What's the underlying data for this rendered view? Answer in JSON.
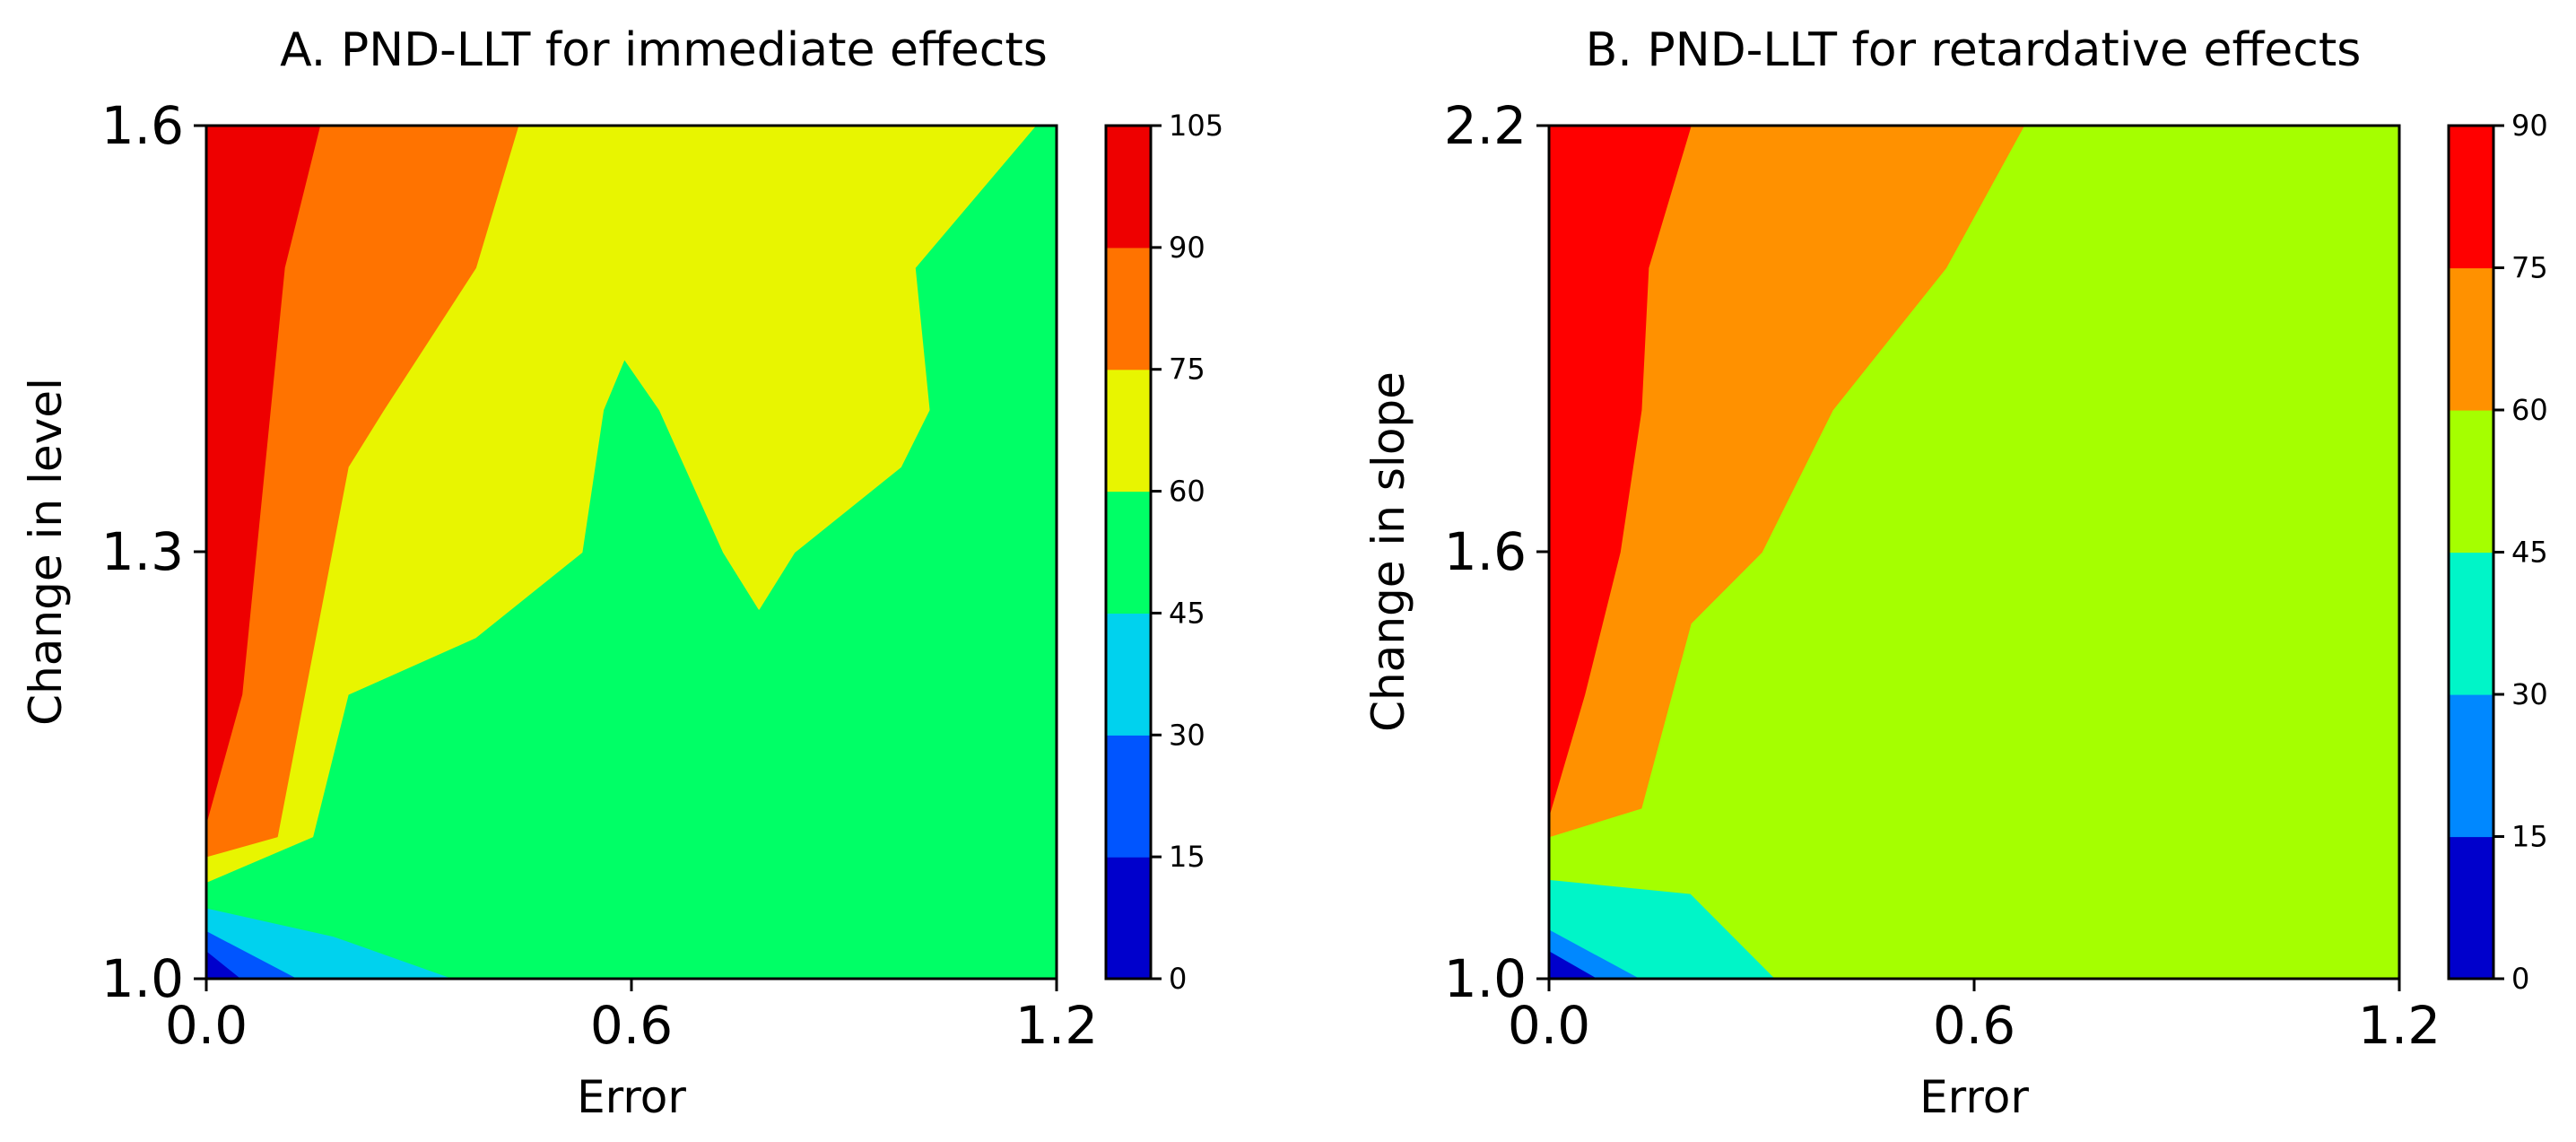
{
  "chart_data": [
    {
      "type": "contour",
      "title": "A. PND-LLT for immediate effects",
      "xlabel": "Error",
      "ylabel": "Change in level",
      "xlim": [
        0.0,
        1.2
      ],
      "ylim": [
        1.0,
        1.6
      ],
      "xticks": [
        "0.0",
        "0.6",
        "1.2"
      ],
      "yticks": [
        "1.0",
        "1.3",
        "1.6"
      ],
      "colorbar": {
        "levels": [
          0,
          15,
          30,
          45,
          60,
          75,
          90,
          105
        ],
        "labels": [
          "0",
          "15",
          "30",
          "45",
          "60",
          "75",
          "90",
          "105"
        ],
        "colors": [
          "#0000cc",
          "#0055ff",
          "#00d2ee",
          "#00ff66",
          "#e8f500",
          "#ff7300",
          "#ee0000"
        ]
      },
      "regions": [
        {
          "range": "0-15",
          "points": [
            [
              0.0,
              1.0
            ],
            [
              0.0,
              1.02
            ],
            [
              0.05,
              1.0
            ]
          ]
        },
        {
          "range": "15-30",
          "points": [
            [
              0.0,
              1.02
            ],
            [
              0.0,
              1.034
            ],
            [
              0.13,
              1.0
            ],
            [
              0.05,
              1.0
            ]
          ]
        },
        {
          "range": "30-45",
          "points": [
            [
              0.0,
              1.034
            ],
            [
              0.0,
              1.05
            ],
            [
              0.18,
              1.03
            ],
            [
              0.35,
              1.0
            ],
            [
              0.13,
              1.0
            ]
          ]
        },
        {
          "range": "45-60",
          "points": [
            [
              0.0,
              1.05
            ],
            [
              0.0,
              1.068
            ],
            [
              0.15,
              1.1
            ],
            [
              0.2,
              1.2
            ],
            [
              0.38,
              1.24
            ],
            [
              0.53,
              1.3
            ],
            [
              0.56,
              1.4
            ],
            [
              0.59,
              1.436
            ],
            [
              0.64,
              1.4
            ],
            [
              0.73,
              1.3
            ],
            [
              0.78,
              1.26
            ],
            [
              0.83,
              1.3
            ],
            [
              0.98,
              1.36
            ],
            [
              1.02,
              1.4
            ],
            [
              1.0,
              1.5
            ],
            [
              1.17,
              1.6
            ],
            [
              1.2,
              1.6
            ],
            [
              1.2,
              1.0
            ],
            [
              0.35,
              1.0
            ],
            [
              0.18,
              1.03
            ]
          ]
        },
        {
          "range": "60-75",
          "points": [
            [
              0.0,
              1.068
            ],
            [
              0.0,
              1.086
            ],
            [
              0.1,
              1.1
            ],
            [
              0.2,
              1.36
            ],
            [
              0.25,
              1.4
            ],
            [
              0.38,
              1.5
            ],
            [
              0.44,
              1.6
            ],
            [
              1.17,
              1.6
            ],
            [
              1.0,
              1.5
            ],
            [
              1.02,
              1.4
            ],
            [
              0.98,
              1.36
            ],
            [
              0.83,
              1.3
            ],
            [
              0.78,
              1.26
            ],
            [
              0.73,
              1.3
            ],
            [
              0.64,
              1.4
            ],
            [
              0.59,
              1.436
            ],
            [
              0.56,
              1.4
            ],
            [
              0.53,
              1.3
            ],
            [
              0.38,
              1.24
            ],
            [
              0.2,
              1.2
            ],
            [
              0.15,
              1.1
            ]
          ]
        },
        {
          "range": "75-90",
          "points": [
            [
              0.0,
              1.086
            ],
            [
              0.0,
              1.11
            ],
            [
              0.05,
              1.2
            ],
            [
              0.09,
              1.4
            ],
            [
              0.11,
              1.5
            ],
            [
              0.16,
              1.6
            ],
            [
              0.44,
              1.6
            ],
            [
              0.38,
              1.5
            ],
            [
              0.25,
              1.4
            ],
            [
              0.2,
              1.36
            ],
            [
              0.1,
              1.1
            ]
          ]
        },
        {
          "range": "90-105",
          "points": [
            [
              0.0,
              1.11
            ],
            [
              0.0,
              1.6
            ],
            [
              0.16,
              1.6
            ],
            [
              0.11,
              1.5
            ],
            [
              0.09,
              1.4
            ],
            [
              0.05,
              1.2
            ]
          ]
        }
      ]
    },
    {
      "type": "contour",
      "title": "B. PND-LLT for retardative effects",
      "xlabel": "Error",
      "ylabel": "Change in slope",
      "xlim": [
        0.0,
        1.2
      ],
      "ylim": [
        1.0,
        2.2
      ],
      "xticks": [
        "0.0",
        "0.6",
        "1.2"
      ],
      "yticks": [
        "1.0",
        "1.6",
        "2.2"
      ],
      "colorbar": {
        "levels": [
          0,
          15,
          30,
          45,
          60,
          75,
          90
        ],
        "labels": [
          "0",
          "15",
          "30",
          "45",
          "60",
          "75",
          "90"
        ],
        "colors": [
          "#0000cc",
          "#0088ff",
          "#00f5c8",
          "#a5ff00",
          "#ff9100",
          "#ff0000"
        ]
      },
      "regions": [
        {
          "range": "0-15",
          "points": [
            [
              0.0,
              1.0
            ],
            [
              0.0,
              1.04
            ],
            [
              0.07,
              1.0
            ]
          ]
        },
        {
          "range": "15-30",
          "points": [
            [
              0.0,
              1.04
            ],
            [
              0.0,
              1.07
            ],
            [
              0.13,
              1.0
            ],
            [
              0.07,
              1.0
            ]
          ]
        },
        {
          "range": "30-45",
          "points": [
            [
              0.0,
              1.07
            ],
            [
              0.0,
              1.14
            ],
            [
              0.2,
              1.12
            ],
            [
              0.32,
              1.0
            ],
            [
              0.13,
              1.0
            ]
          ]
        },
        {
          "range": "45-60",
          "points": [
            [
              0.0,
              1.14
            ],
            [
              0.0,
              1.2
            ],
            [
              0.13,
              1.24
            ],
            [
              0.2,
              1.5
            ],
            [
              0.3,
              1.6
            ],
            [
              0.4,
              1.8
            ],
            [
              0.56,
              2.0
            ],
            [
              0.67,
              2.2
            ],
            [
              1.2,
              2.2
            ],
            [
              1.2,
              1.0
            ],
            [
              0.32,
              1.0
            ],
            [
              0.2,
              1.12
            ]
          ]
        },
        {
          "range": "60-75",
          "points": [
            [
              0.0,
              1.2
            ],
            [
              0.0,
              1.23
            ],
            [
              0.05,
              1.4
            ],
            [
              0.1,
              1.6
            ],
            [
              0.13,
              1.8
            ],
            [
              0.14,
              2.0
            ],
            [
              0.2,
              2.2
            ],
            [
              0.67,
              2.2
            ],
            [
              0.56,
              2.0
            ],
            [
              0.4,
              1.8
            ],
            [
              0.3,
              1.6
            ],
            [
              0.2,
              1.5
            ],
            [
              0.13,
              1.24
            ]
          ]
        },
        {
          "range": "75-90",
          "points": [
            [
              0.0,
              1.23
            ],
            [
              0.0,
              2.2
            ],
            [
              0.2,
              2.2
            ],
            [
              0.14,
              2.0
            ],
            [
              0.13,
              1.8
            ],
            [
              0.1,
              1.6
            ],
            [
              0.05,
              1.4
            ]
          ]
        }
      ]
    }
  ]
}
